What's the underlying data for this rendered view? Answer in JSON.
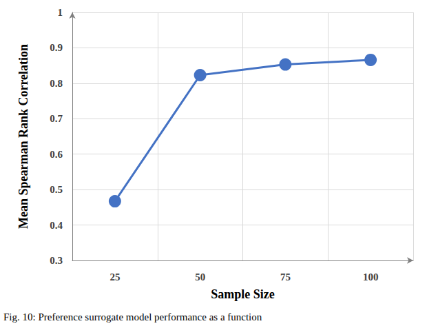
{
  "chart_data": {
    "type": "line",
    "caption": "Fig. 10: Preference surrogate model performance as a function",
    "x_label": "Sample Size",
    "y_label": "Mean Spearman Rank Correlation",
    "categories": [
      "25",
      "50",
      "75",
      "100"
    ],
    "values": [
      0.467,
      0.823,
      0.853,
      0.866
    ],
    "color": "#4472c4",
    "marker": "circle",
    "ylim": [
      0.3,
      1
    ],
    "yticks": [
      0.3,
      0.4,
      0.5,
      0.6,
      0.7,
      0.8,
      0.9,
      1
    ],
    "grid": true
  }
}
